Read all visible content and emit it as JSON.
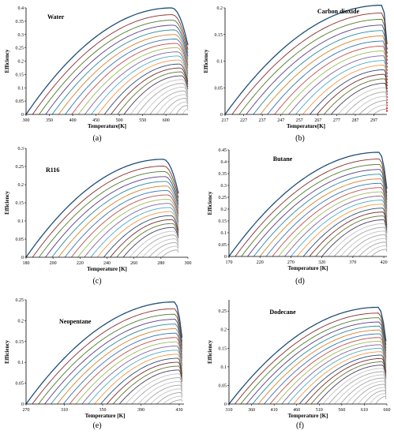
{
  "chart_data": [
    {
      "type": "line",
      "subplot_label": "(a)",
      "title": "Water",
      "xlabel": "Temperature[K]",
      "ylabel": "Efficiency",
      "xlim": [
        300,
        647
      ],
      "ylim": [
        0,
        0.4
      ],
      "xticks": [
        "300",
        "350",
        "400",
        "450",
        "500",
        "550",
        "600"
      ],
      "yticks": [
        "0",
        "0.05",
        "0.1",
        "0.15",
        "0.2",
        "0.25",
        "0.3",
        "0.35",
        "0.4"
      ],
      "grid": false,
      "curves": {
        "count": 25,
        "start_x": 300,
        "end_x": 647,
        "x_spacing": 14,
        "max_peak": 0.4,
        "min_peak": 0.02,
        "peak_position": 0.9
      }
    },
    {
      "type": "line",
      "subplot_label": "(b)",
      "title": "Carbon dioxide",
      "xlabel": "Temperature[K]",
      "ylabel": "Efficiency",
      "xlim": [
        217,
        304
      ],
      "ylim": [
        0,
        0.2
      ],
      "xticks": [
        "217",
        "227",
        "237",
        "247",
        "257",
        "267",
        "277",
        "287",
        "297"
      ],
      "yticks": [
        "0",
        "0.05",
        "0.1",
        "0.15",
        "0.2"
      ],
      "grid": false,
      "curves": {
        "count": 22,
        "start_x": 217,
        "end_x": 304,
        "x_spacing": 3.8,
        "max_peak": 0.205,
        "min_peak": 0.01,
        "peak_position": 0.97
      }
    },
    {
      "type": "line",
      "subplot_label": "(c)",
      "title": "R116",
      "xlabel": "Temperature [K]",
      "ylabel": "Efficiency",
      "xlim": [
        180,
        300
      ],
      "ylim": [
        0,
        0.3
      ],
      "xticks": [
        "180",
        "200",
        "220",
        "240",
        "260",
        "280",
        "300"
      ],
      "yticks": [
        "0",
        "0.05",
        "0.1",
        "0.15",
        "0.2",
        "0.25",
        "0.3"
      ],
      "grid": false,
      "curves": {
        "count": 22,
        "start_x": 180,
        "end_x": 293,
        "x_spacing": 4.8,
        "max_peak": 0.27,
        "min_peak": 0.02,
        "peak_position": 0.9
      }
    },
    {
      "type": "line",
      "subplot_label": "(d)",
      "title": "Butane",
      "xlabel": "Temperature [K]",
      "ylabel": "Efficiency",
      "xlim": [
        170,
        425
      ],
      "ylim": [
        0,
        0.45
      ],
      "xticks": [
        "170",
        "220",
        "270",
        "320",
        "370",
        "420"
      ],
      "yticks": [
        "0",
        "0.05",
        "0.1",
        "0.15",
        "0.2",
        "0.25",
        "0.3",
        "0.35",
        "0.4",
        "0.45"
      ],
      "grid": false,
      "curves": {
        "count": 24,
        "start_x": 170,
        "end_x": 425,
        "x_spacing": 10,
        "max_peak": 0.44,
        "min_peak": 0.03,
        "peak_position": 0.95
      }
    },
    {
      "type": "line",
      "subplot_label": "(e)",
      "title": "Neopentane",
      "xlabel": "Temperature [K]",
      "ylabel": "Efficiency",
      "xlim": [
        270,
        435
      ],
      "ylim": [
        0,
        0.25
      ],
      "xticks": [
        "270",
        "310",
        "350",
        "390",
        "430"
      ],
      "yticks": [
        "0",
        "0.05",
        "0.1",
        "0.15",
        "0.2",
        "0.25"
      ],
      "grid": false,
      "curves": {
        "count": 24,
        "start_x": 270,
        "end_x": 433,
        "x_spacing": 6.5,
        "max_peak": 0.245,
        "min_peak": 0.01,
        "peak_position": 0.95
      }
    },
    {
      "type": "line",
      "subplot_label": "(f)",
      "title": "Dodecane",
      "xlabel": "Temperature [K]",
      "ylabel": "Efficiency",
      "xlim": [
        310,
        660
      ],
      "ylim": [
        0,
        0.28
      ],
      "xticks": [
        "310",
        "360",
        "410",
        "460",
        "510",
        "560",
        "610",
        "660"
      ],
      "yticks": [
        "0",
        "0.05",
        "0.1",
        "0.15",
        "0.2",
        "0.25"
      ],
      "grid": false,
      "curves": {
        "count": 26,
        "start_x": 310,
        "end_x": 658,
        "x_spacing": 13,
        "max_peak": 0.26,
        "min_peak": 0.02,
        "peak_position": 0.95
      }
    }
  ],
  "palette": [
    "#1f4e79",
    "#8b2c2c",
    "#4e7d2e",
    "#5b3c86",
    "#2a8b9e",
    "#d9822b",
    "#3973b8",
    "#c0504d",
    "#9bbb59",
    "#8064a2",
    "#4bacc6",
    "#f79646",
    "#2c4d75",
    "#772c2a",
    "#5f7530",
    "#4d3b62",
    "#276a7c",
    "#b65708",
    "#a6a6a6",
    "#c3c3c3"
  ]
}
